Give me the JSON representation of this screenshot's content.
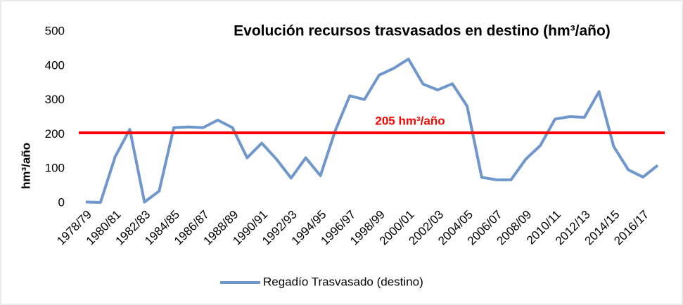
{
  "chart_data": {
    "type": "line",
    "title": "Evolución recursos trasvasados en destino (hm³/año)",
    "y_label": "hm³/año",
    "categories": [
      "1978/79",
      null,
      "1980/81",
      null,
      "1982/83",
      null,
      "1984/85",
      null,
      "1986/87",
      null,
      "1988/89",
      null,
      "1990/91",
      null,
      "1992/93",
      null,
      "1994/95",
      null,
      "1996/97",
      null,
      "1998/99",
      null,
      "2000/01",
      null,
      "2002/03",
      null,
      "2004/05",
      null,
      "2006/07",
      null,
      "2008/09",
      null,
      "2010/11",
      null,
      "2012/13",
      null,
      "2014/15",
      null,
      "2016/17",
      null
    ],
    "series": [
      {
        "name": "Regadío Trasvasado (destino)",
        "color": "#6f97cc",
        "values": [
          3,
          2,
          135,
          215,
          3,
          35,
          220,
          222,
          220,
          242,
          220,
          132,
          175,
          128,
          73,
          132,
          80,
          210,
          313,
          302,
          373,
          393,
          420,
          347,
          330,
          348,
          283,
          75,
          68,
          68,
          128,
          168,
          245,
          252,
          250,
          325,
          165,
          97,
          76,
          110
        ]
      }
    ],
    "reference_line": {
      "value": 205,
      "label": "205 hm³/año",
      "color": "#ff0000"
    },
    "ylim": [
      0,
      500
    ],
    "yticks": [
      0,
      100,
      200,
      300,
      400,
      500
    ],
    "grid": false,
    "legend": "bottom"
  }
}
